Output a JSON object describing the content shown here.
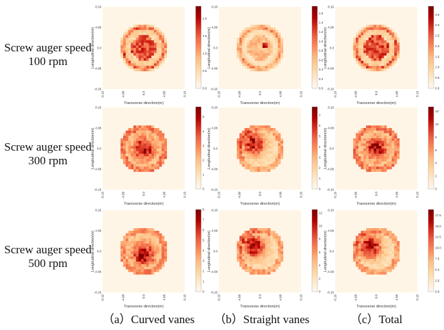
{
  "rows": [
    {
      "label_line1": "Screw auger speed",
      "label_line2": "100 rpm"
    },
    {
      "label_line1": "Screw auger speed",
      "label_line2": "300 rpm"
    },
    {
      "label_line1": "Screw auger speed",
      "label_line2": "500 rpm"
    }
  ],
  "columns": [
    {
      "caption": "（a）Curved vanes"
    },
    {
      "caption": "（b）Straight vanes"
    },
    {
      "caption": "（c）Total"
    }
  ],
  "colormap": {
    "name": "OrRd",
    "stops": [
      "#fff7ec",
      "#fee8c8",
      "#fdd49e",
      "#fdbb84",
      "#fc8d59",
      "#ef6548",
      "#d7301f",
      "#b30000",
      "#7f0000"
    ]
  },
  "chart_data": [
    {
      "type": "heatmap",
      "row": 0,
      "col": 0,
      "speed": "100 rpm",
      "vanes": "Curved vanes",
      "xlabel": "Transverse direction(m)",
      "ylabel": "Longitudinal direction(m)",
      "xticks": [
        "-8.16",
        "-4.08",
        "0.0",
        "4.08",
        "8.16"
      ],
      "yticks": [
        "8.16",
        "4.08",
        "0.0",
        "-4.08",
        "-8.16"
      ],
      "xlim": [
        -8.16,
        8.16
      ],
      "ylim": [
        -8.16,
        8.16
      ],
      "grid_cells": 32,
      "pattern": "ring+core",
      "colorbar": {
        "min": 0,
        "max": 2.35,
        "ticks": [
          "0.0",
          "0.5",
          "1.0",
          "1.5",
          "2.0"
        ]
      }
    },
    {
      "type": "heatmap",
      "row": 0,
      "col": 1,
      "speed": "100 rpm",
      "vanes": "Straight vanes",
      "xlabel": "Transverse direction(m)",
      "ylabel": "Longitudinal direction(m)",
      "xticks": [
        "-8.16",
        "-4.08",
        "0.0",
        "4.08",
        "8.16"
      ],
      "yticks": [
        "8.16",
        "4.08",
        "0.0",
        "-4.08",
        "-8.16"
      ],
      "xlim": [
        -8.16,
        8.16
      ],
      "ylim": [
        -8.16,
        8.16
      ],
      "grid_cells": 32,
      "pattern": "sparse-ring",
      "colorbar": {
        "min": 0,
        "max": 1.75,
        "ticks": [
          "0.0",
          "0.2",
          "0.4",
          "0.6",
          "0.8",
          "1.0",
          "1.2",
          "1.4",
          "1.6"
        ]
      }
    },
    {
      "type": "heatmap",
      "row": 0,
      "col": 2,
      "speed": "100 rpm",
      "vanes": "Total",
      "xlabel": "Transverse direction(m)",
      "ylabel": "Longitudinal direction(m)",
      "xticks": [
        "-8.16",
        "-4.08",
        "0.0",
        "4.08",
        "8.16"
      ],
      "yticks": [
        "8.16",
        "4.08",
        "0.0",
        "-4.08",
        "-8.16"
      ],
      "xlim": [
        -8.16,
        8.16
      ],
      "ylim": [
        -8.16,
        8.16
      ],
      "grid_cells": 32,
      "pattern": "ring+core",
      "colorbar": {
        "min": 0,
        "max": 3.9,
        "ticks": [
          "0.0",
          "0.5",
          "1.0",
          "1.5",
          "2.0",
          "2.5",
          "3.0",
          "3.5"
        ]
      }
    },
    {
      "type": "heatmap",
      "row": 1,
      "col": 0,
      "speed": "300 rpm",
      "vanes": "Curved vanes",
      "xlabel": "Transverse direction(m)",
      "ylabel": "Longitudinal direction(m)",
      "xticks": [
        "-8.16",
        "-4.08",
        "0.0",
        "4.08",
        "8.16"
      ],
      "yticks": [
        "8.16",
        "4.08",
        "0.0",
        "-4.08",
        "-8.16"
      ],
      "xlim": [
        -8.16,
        8.16
      ],
      "ylim": [
        -8.16,
        8.16
      ],
      "grid_cells": 32,
      "pattern": "solid-core",
      "colorbar": {
        "min": 0,
        "max": 5.7,
        "ticks": [
          "0",
          "1",
          "2",
          "3",
          "4",
          "5"
        ]
      }
    },
    {
      "type": "heatmap",
      "row": 1,
      "col": 1,
      "speed": "300 rpm",
      "vanes": "Straight vanes",
      "xlabel": "Transverse direction(m)",
      "ylabel": "Longitudinal direction(m)",
      "xticks": [
        "-8.16",
        "-4.08",
        "0.0",
        "4.08",
        "8.16"
      ],
      "yticks": [
        "8.16",
        "4.08",
        "0.0",
        "-4.08",
        "-8.16"
      ],
      "xlim": [
        -8.16,
        8.16
      ],
      "ylim": [
        -8.16,
        8.16
      ],
      "grid_cells": 32,
      "pattern": "offset-upper-left",
      "colorbar": {
        "min": 0,
        "max": 7.8,
        "ticks": [
          "0",
          "1",
          "2",
          "3",
          "4",
          "5",
          "6",
          "7"
        ]
      }
    },
    {
      "type": "heatmap",
      "row": 1,
      "col": 2,
      "speed": "300 rpm",
      "vanes": "Total",
      "xlabel": "Transverse direction(m)",
      "ylabel": "Longitudinal direction(m)",
      "xticks": [
        "-8.16",
        "-4.08",
        "0.0",
        "4.08",
        "8.16"
      ],
      "yticks": [
        "8.16",
        "4.08",
        "0.0",
        "-4.08",
        "-8.16"
      ],
      "xlim": [
        -8.16,
        8.16
      ],
      "ylim": [
        -8.16,
        8.16
      ],
      "grid_cells": 32,
      "pattern": "solid-core",
      "colorbar": {
        "min": 0,
        "max": 12.7,
        "ticks": [
          "0",
          "2",
          "4",
          "6",
          "8",
          "10",
          "12"
        ]
      }
    },
    {
      "type": "heatmap",
      "row": 2,
      "col": 0,
      "speed": "500 rpm",
      "vanes": "Curved vanes",
      "xlabel": "Transverse direction(m)",
      "ylabel": "Longitudinal direction(m)",
      "xticks": [
        "-8.16",
        "-4.08",
        "0.0",
        "4.08",
        "8.16"
      ],
      "yticks": [
        "8.16",
        "4.08",
        "0.0",
        "-4.08",
        "-8.16"
      ],
      "xlim": [
        -8.16,
        8.16
      ],
      "ylim": [
        -8.16,
        8.16
      ],
      "grid_cells": 32,
      "pattern": "solid-core-low",
      "colorbar": {
        "min": 0,
        "max": 8,
        "ticks": [
          "0",
          "1",
          "2",
          "3",
          "4",
          "5",
          "6",
          "7",
          "8"
        ]
      }
    },
    {
      "type": "heatmap",
      "row": 2,
      "col": 1,
      "speed": "500 rpm",
      "vanes": "Straight vanes",
      "xlabel": "Transverse direction(m)",
      "ylabel": "Longitudinal direction(m)",
      "xticks": [
        "-8.16",
        "-4.08",
        "0.0",
        "4.08",
        "8.16"
      ],
      "yticks": [
        "8.16",
        "4.08",
        "0.0",
        "-4.08",
        "-8.16"
      ],
      "xlim": [
        -8.16,
        8.16
      ],
      "ylim": [
        -8.16,
        8.16
      ],
      "grid_cells": 32,
      "pattern": "offset-upper-left",
      "colorbar": {
        "min": 0,
        "max": 12.5,
        "ticks": [
          "0",
          "2",
          "4",
          "6",
          "8",
          "10",
          "12"
        ]
      }
    },
    {
      "type": "heatmap",
      "row": 2,
      "col": 2,
      "speed": "500 rpm",
      "vanes": "Total",
      "xlabel": "Transverse direction(m)",
      "ylabel": "Longitudinal direction(m)",
      "xticks": [
        "-8.16",
        "-4.08",
        "0.0",
        "4.08",
        "8.16"
      ],
      "yticks": [
        "8.16",
        "4.08",
        "0.0",
        "-4.08",
        "-8.16"
      ],
      "xlim": [
        -8.16,
        8.16
      ],
      "ylim": [
        -8.16,
        8.16
      ],
      "grid_cells": 32,
      "pattern": "offset-upper-left",
      "colorbar": {
        "min": 0,
        "max": 18.8,
        "ticks": [
          "0.0",
          "2.5",
          "5.0",
          "7.5",
          "10.0",
          "12.5",
          "15.0",
          "17.5"
        ]
      }
    }
  ]
}
